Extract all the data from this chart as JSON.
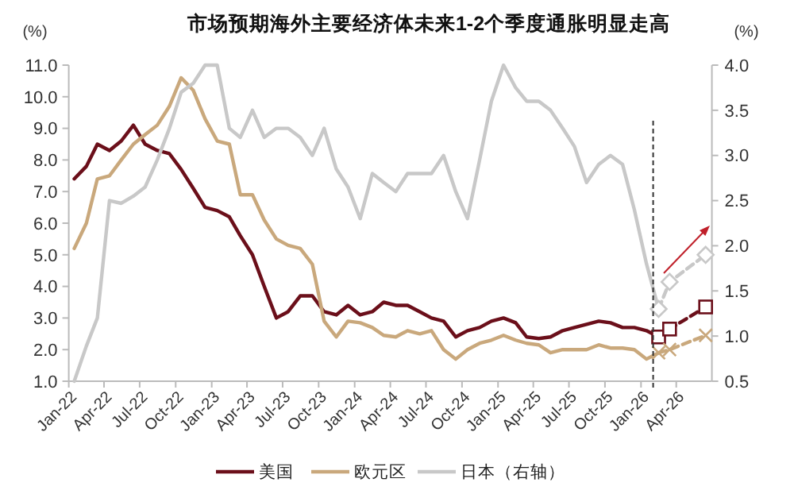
{
  "chart_data": {
    "type": "line",
    "title": "市场预期海外主要经济体未来1-2个季度通胀明显走高",
    "ylabel": "(%)",
    "y2label": "(%)",
    "xlim": [
      "2022-01-01",
      "2026-07-01"
    ],
    "xticks": [
      {
        "value": "2022-01-01",
        "label": "Jan-22"
      },
      {
        "value": "2022-04-01",
        "label": "Apr-22"
      },
      {
        "value": "2022-07-01",
        "label": "Jul-22"
      },
      {
        "value": "2022-10-01",
        "label": "Oct-22"
      },
      {
        "value": "2023-01-01",
        "label": "Jan-23"
      },
      {
        "value": "2023-04-01",
        "label": "Apr-23"
      },
      {
        "value": "2023-07-01",
        "label": "Jul-23"
      },
      {
        "value": "2023-10-01",
        "label": "Oct-23"
      },
      {
        "value": "2024-01-01",
        "label": "Jan-24"
      },
      {
        "value": "2024-04-01",
        "label": "Apr-24"
      },
      {
        "value": "2024-07-01",
        "label": "Jul-24"
      },
      {
        "value": "2024-10-01",
        "label": "Oct-24"
      },
      {
        "value": "2025-01-01",
        "label": "Jan-25"
      },
      {
        "value": "2025-04-01",
        "label": "Apr-25"
      },
      {
        "value": "2025-07-01",
        "label": "Jul-25"
      },
      {
        "value": "2025-10-01",
        "label": "Oct-25"
      },
      {
        "value": "2026-01-01",
        "label": "Jan-26"
      },
      {
        "value": "2026-04-01",
        "label": "Apr-26"
      }
    ],
    "ylim": [
      1,
      11
    ],
    "yticks": [
      {
        "value": 1,
        "label": "1.0"
      },
      {
        "value": 2,
        "label": "2.0"
      },
      {
        "value": 3,
        "label": "3.0"
      },
      {
        "value": 4,
        "label": "4.0"
      },
      {
        "value": 5,
        "label": "5.0"
      },
      {
        "value": 6,
        "label": "6.0"
      },
      {
        "value": 7,
        "label": "7.0"
      },
      {
        "value": 8,
        "label": "8.0"
      },
      {
        "value": 9,
        "label": "9.0"
      },
      {
        "value": 10,
        "label": "10.0"
      },
      {
        "value": 11,
        "label": "11.0"
      }
    ],
    "y2lim": [
      0.5,
      4
    ],
    "y2ticks": [
      0.5,
      {
        "value": 1,
        "label": "1.0"
      },
      1.5,
      {
        "value": 2,
        "label": "2.0"
      },
      2.5,
      {
        "value": 3,
        "label": "3.0"
      },
      3.5,
      {
        "value": 4,
        "label": "4.0"
      }
    ],
    "x": [
      "2022-01-15",
      "2022-02-15",
      "2022-03-15",
      "2022-04-15",
      "2022-05-15",
      "2022-06-15",
      "2022-07-15",
      "2022-08-15",
      "2022-09-15",
      "2022-10-15",
      "2022-11-15",
      "2022-12-15",
      "2023-01-15",
      "2023-02-15",
      "2023-03-15",
      "2023-04-15",
      "2023-05-15",
      "2023-06-15",
      "2023-07-15",
      "2023-08-15",
      "2023-09-15",
      "2023-10-15",
      "2023-11-15",
      "2023-12-15",
      "2024-01-15",
      "2024-02-15",
      "2024-03-15",
      "2024-04-15",
      "2024-05-15",
      "2024-06-15",
      "2024-07-15",
      "2024-08-15",
      "2024-09-15",
      "2024-10-15",
      "2024-11-15",
      "2024-12-15",
      "2025-01-15",
      "2025-02-15",
      "2025-03-15",
      "2025-04-15",
      "2025-05-15",
      "2025-06-15",
      "2025-07-15",
      "2025-08-15",
      "2025-09-15",
      "2025-10-15",
      "2025-11-15",
      "2025-12-15",
      "2026-01-15",
      "2026-02-15"
    ],
    "legend": "bottom",
    "ref_lines": [
      {
        "axis": "x",
        "value": "2026-02-01",
        "color": "#333333",
        "line_style": "dashed"
      }
    ],
    "series": [
      {
        "name": "美国",
        "color": "#6b0f1a",
        "values": [
          7.4,
          7.8,
          8.5,
          8.3,
          8.6,
          9.1,
          8.5,
          8.3,
          8.2,
          7.7,
          7.1,
          6.5,
          6.4,
          6.2,
          5.6,
          5.0,
          4.0,
          3.0,
          3.2,
          3.7,
          3.7,
          3.2,
          3.1,
          3.4,
          3.1,
          3.2,
          3.5,
          3.4,
          3.4,
          3.2,
          3.0,
          2.9,
          2.4,
          2.6,
          2.7,
          2.9,
          3.0,
          2.85,
          2.4,
          2.35,
          2.4,
          2.6,
          2.7,
          2.8,
          2.9,
          2.85,
          2.7,
          2.7,
          2.6,
          2.4
        ]
      },
      {
        "name": "欧元区",
        "color": "#c9a87c",
        "values": [
          5.2,
          6.0,
          7.4,
          7.5,
          8.0,
          8.5,
          8.8,
          9.1,
          9.7,
          10.6,
          10.2,
          9.3,
          8.6,
          8.5,
          6.9,
          6.9,
          6.1,
          5.5,
          5.3,
          5.2,
          4.7,
          2.9,
          2.4,
          2.9,
          2.85,
          2.7,
          2.45,
          2.4,
          2.6,
          2.5,
          2.6,
          2.0,
          1.7,
          2.0,
          2.2,
          2.3,
          2.45,
          2.3,
          2.2,
          2.15,
          1.9,
          2.0,
          2.0,
          2.0,
          2.15,
          2.05,
          2.05,
          2.0,
          1.7,
          1.9
        ]
      },
      {
        "name": "日本（右轴）",
        "color": "#c8c8c8",
        "axis": "y2",
        "values": [
          0.5,
          0.89,
          1.2,
          2.5,
          2.47,
          2.55,
          2.65,
          2.95,
          3.3,
          3.7,
          3.8,
          4.0,
          4.0,
          3.3,
          3.2,
          3.5,
          3.2,
          3.3,
          3.3,
          3.2,
          3.0,
          3.3,
          2.85,
          2.65,
          2.3,
          2.8,
          2.7,
          2.6,
          2.8,
          2.8,
          2.8,
          3.0,
          2.6,
          2.3,
          2.95,
          3.6,
          4.0,
          3.75,
          3.6,
          3.6,
          3.5,
          3.3,
          3.1,
          2.7,
          2.9,
          3.0,
          2.9,
          2.4,
          1.8,
          1.3
        ]
      },
      {
        "color": "#6b0f1a",
        "line_style": "dashed",
        "marker": "square",
        "x": [
          "2026-02-15",
          "2026-03-15",
          "2026-06-15"
        ],
        "values": [
          2.4,
          2.65,
          3.35
        ]
      },
      {
        "color": "#c9a87c",
        "line_style": "dashed",
        "marker": "cross",
        "x": [
          "2026-02-15",
          "2026-03-15",
          "2026-06-15"
        ],
        "values": [
          1.9,
          2.0,
          2.45
        ]
      },
      {
        "color": "#c8c8c8",
        "axis": "y2",
        "line_style": "dashed",
        "marker": "diamond",
        "x": [
          "2026-02-15",
          "2026-03-15",
          "2026-06-15"
        ],
        "values": [
          1.3,
          1.6,
          1.9
        ]
      }
    ]
  }
}
